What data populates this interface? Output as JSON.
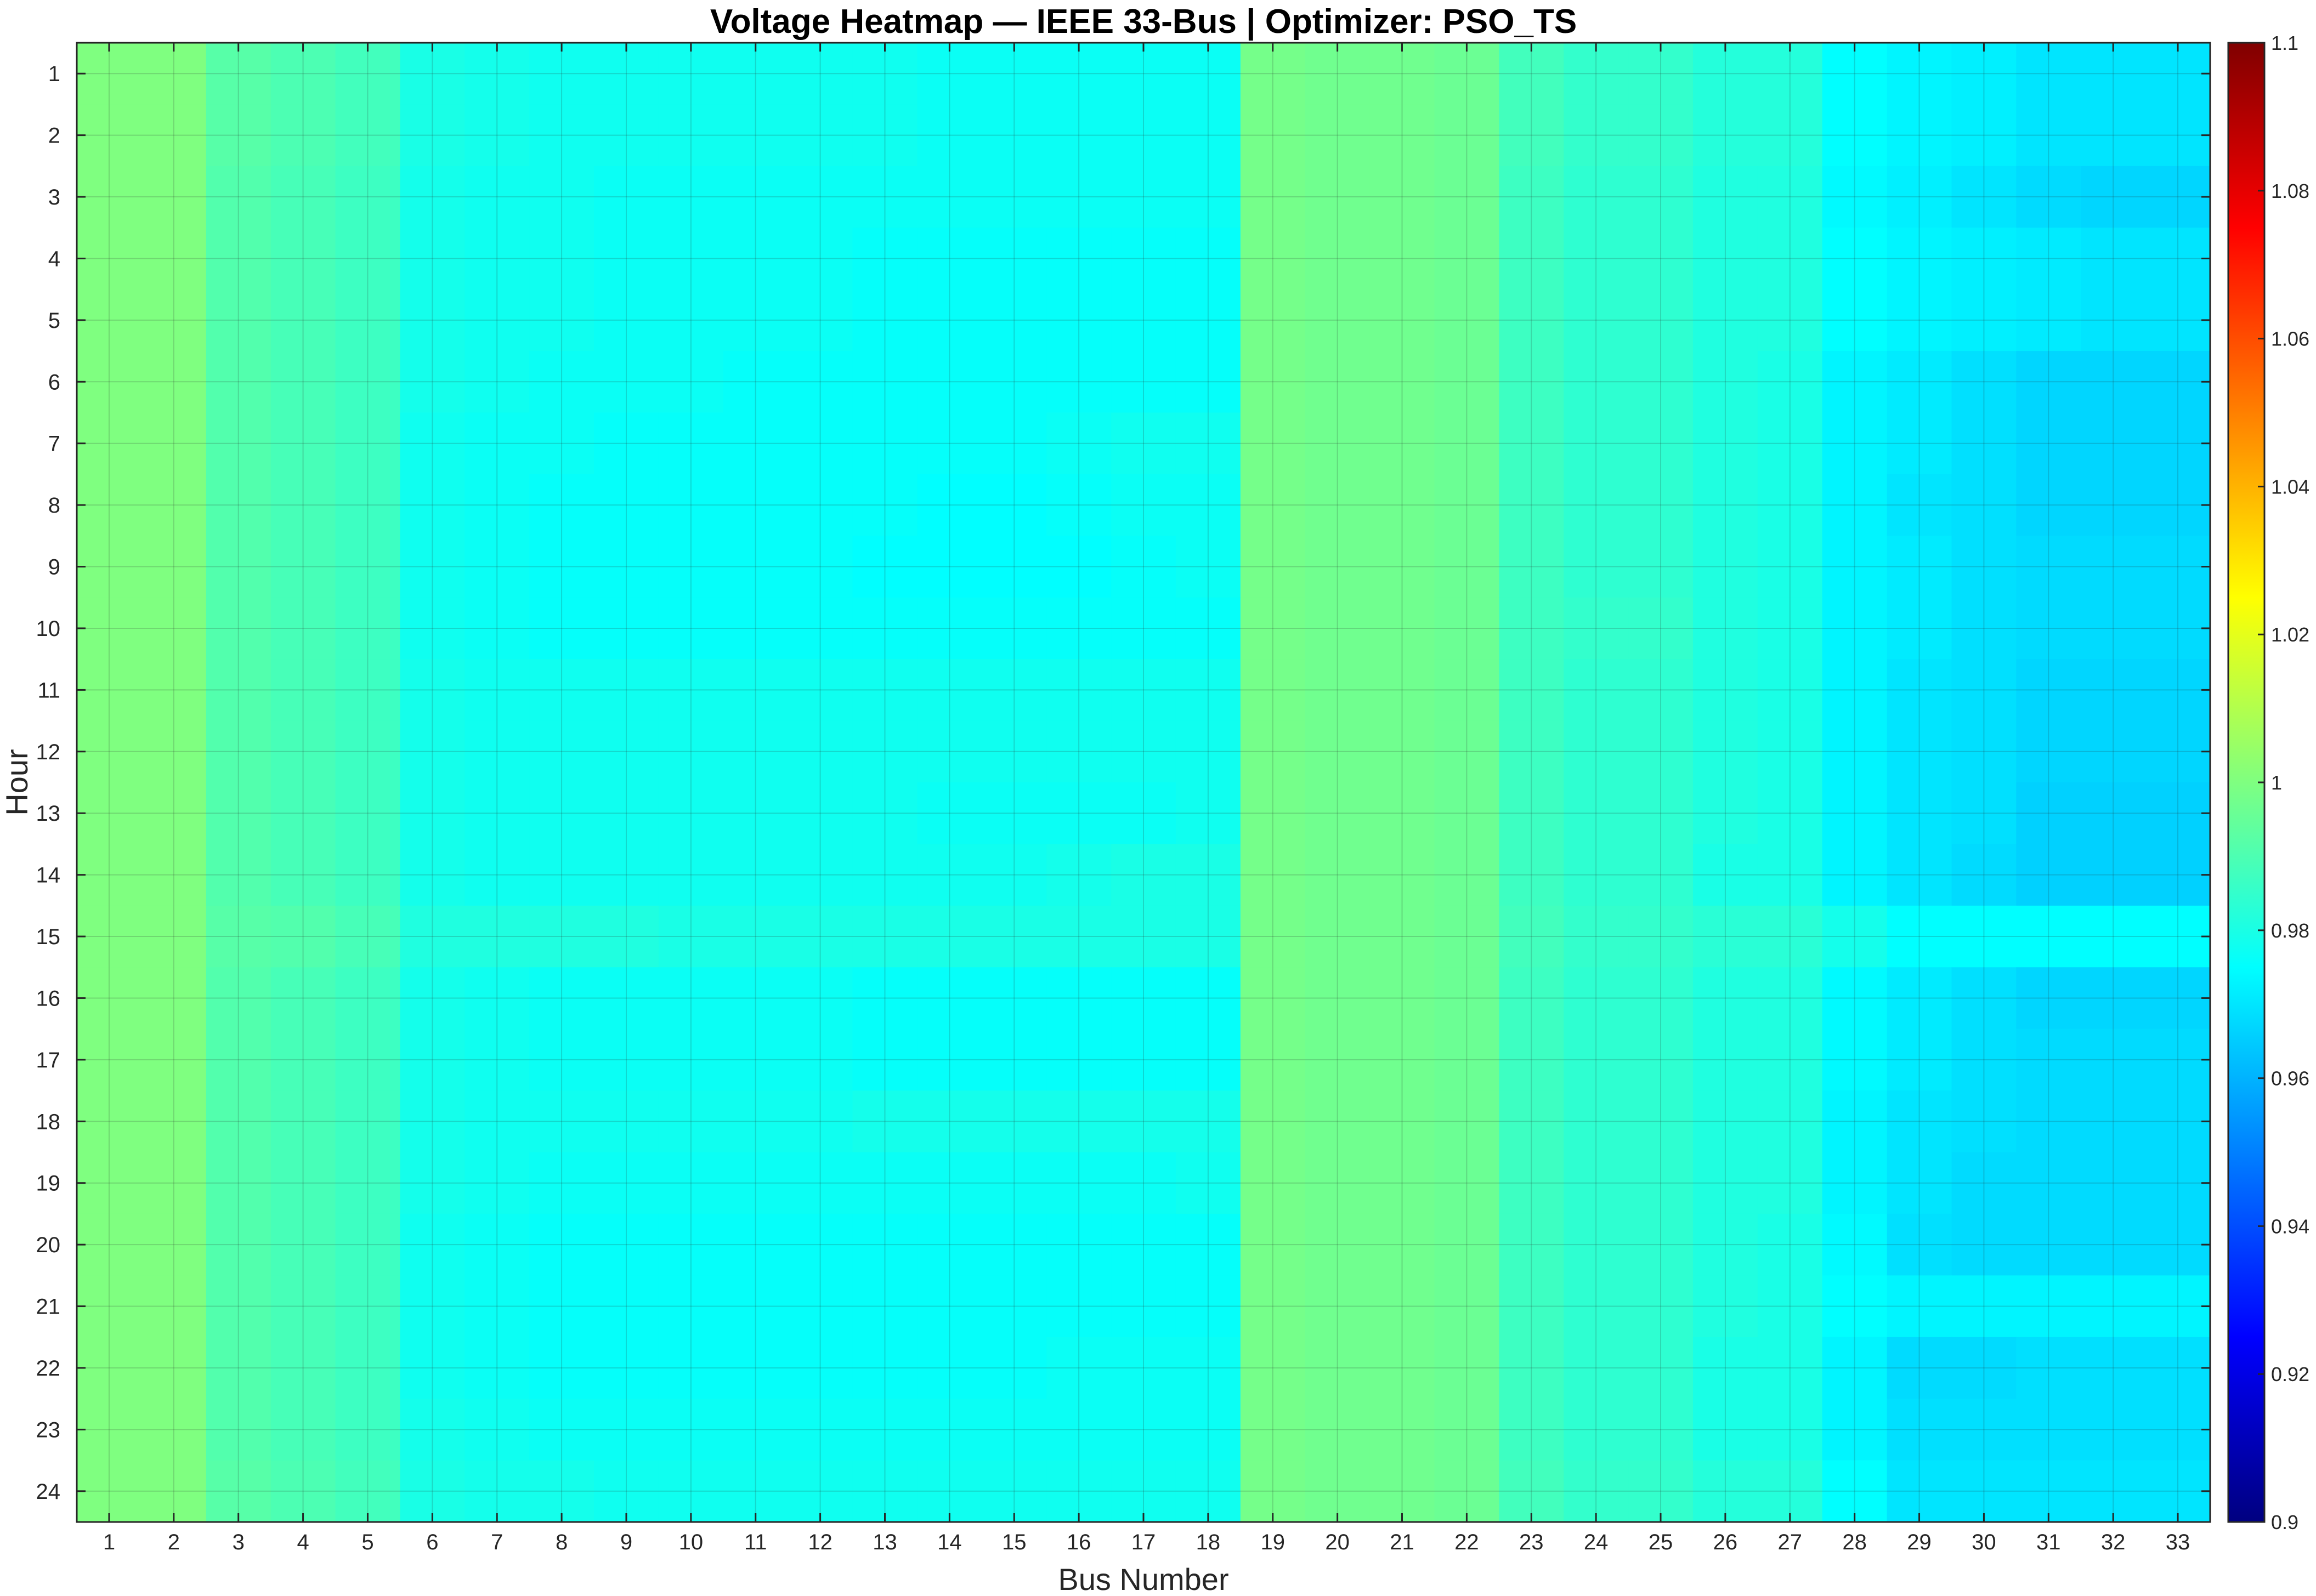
{
  "chart_data": {
    "type": "heatmap",
    "title": "Voltage Heatmap — IEEE 33-Bus | Optimizer: PSO_TS",
    "xlabel": "Bus Number",
    "ylabel": "Hour",
    "x": [
      1,
      2,
      3,
      4,
      5,
      6,
      7,
      8,
      9,
      10,
      11,
      12,
      13,
      14,
      15,
      16,
      17,
      18,
      19,
      20,
      21,
      22,
      23,
      24,
      25,
      26,
      27,
      28,
      29,
      30,
      31,
      32,
      33
    ],
    "y": [
      1,
      2,
      3,
      4,
      5,
      6,
      7,
      8,
      9,
      10,
      11,
      12,
      13,
      14,
      15,
      16,
      17,
      18,
      19,
      20,
      21,
      22,
      23,
      24
    ],
    "colormap": "jet",
    "clim": [
      0.9,
      1.1
    ],
    "colorbar_ticks": [
      0.9,
      0.92,
      0.94,
      0.96,
      0.98,
      1,
      1.02,
      1.04,
      1.06,
      1.08,
      1.1
    ],
    "colorbar_location": "right",
    "grid": true,
    "hourly_values": [
      {
        "hour": 1,
        "values": [
          1.0,
          1.0,
          0.992,
          0.99,
          0.988,
          0.98,
          0.979,
          0.978,
          0.978,
          0.978,
          0.978,
          0.978,
          0.978,
          0.977,
          0.977,
          0.977,
          0.977,
          0.977,
          0.998,
          0.997,
          0.997,
          0.996,
          0.988,
          0.985,
          0.985,
          0.982,
          0.982,
          0.975,
          0.973,
          0.972,
          0.97,
          0.97,
          0.97
        ]
      },
      {
        "hour": 2,
        "values": [
          1.0,
          1.0,
          0.992,
          0.99,
          0.988,
          0.98,
          0.979,
          0.978,
          0.978,
          0.978,
          0.978,
          0.978,
          0.978,
          0.977,
          0.977,
          0.977,
          0.977,
          0.977,
          0.998,
          0.997,
          0.997,
          0.996,
          0.988,
          0.985,
          0.985,
          0.982,
          0.982,
          0.975,
          0.973,
          0.972,
          0.97,
          0.97,
          0.97
        ]
      },
      {
        "hour": 3,
        "values": [
          1.0,
          1.0,
          0.991,
          0.989,
          0.987,
          0.979,
          0.978,
          0.978,
          0.977,
          0.977,
          0.977,
          0.977,
          0.977,
          0.977,
          0.977,
          0.977,
          0.977,
          0.977,
          0.998,
          0.997,
          0.997,
          0.996,
          0.987,
          0.984,
          0.984,
          0.981,
          0.981,
          0.974,
          0.972,
          0.97,
          0.968,
          0.967,
          0.967
        ]
      },
      {
        "hour": 4,
        "values": [
          1.0,
          1.0,
          0.991,
          0.989,
          0.987,
          0.979,
          0.978,
          0.978,
          0.977,
          0.977,
          0.977,
          0.977,
          0.976,
          0.976,
          0.976,
          0.976,
          0.976,
          0.976,
          0.998,
          0.997,
          0.997,
          0.996,
          0.987,
          0.984,
          0.984,
          0.981,
          0.981,
          0.975,
          0.973,
          0.972,
          0.971,
          0.97,
          0.97
        ]
      },
      {
        "hour": 5,
        "values": [
          1.0,
          1.0,
          0.991,
          0.989,
          0.987,
          0.979,
          0.978,
          0.978,
          0.977,
          0.977,
          0.977,
          0.977,
          0.976,
          0.976,
          0.976,
          0.976,
          0.976,
          0.976,
          0.998,
          0.997,
          0.997,
          0.996,
          0.987,
          0.984,
          0.984,
          0.981,
          0.981,
          0.975,
          0.973,
          0.972,
          0.971,
          0.97,
          0.97
        ]
      },
      {
        "hour": 6,
        "values": [
          1.0,
          1.0,
          0.991,
          0.989,
          0.987,
          0.979,
          0.978,
          0.977,
          0.977,
          0.977,
          0.976,
          0.976,
          0.976,
          0.976,
          0.976,
          0.976,
          0.976,
          0.976,
          0.998,
          0.997,
          0.997,
          0.996,
          0.987,
          0.984,
          0.984,
          0.981,
          0.98,
          0.973,
          0.971,
          0.969,
          0.967,
          0.967,
          0.967
        ]
      },
      {
        "hour": 7,
        "values": [
          1.0,
          1.0,
          0.991,
          0.989,
          0.987,
          0.978,
          0.977,
          0.977,
          0.976,
          0.976,
          0.976,
          0.976,
          0.976,
          0.976,
          0.976,
          0.977,
          0.978,
          0.978,
          0.998,
          0.997,
          0.997,
          0.996,
          0.987,
          0.984,
          0.984,
          0.981,
          0.98,
          0.973,
          0.971,
          0.969,
          0.967,
          0.967,
          0.967
        ]
      },
      {
        "hour": 8,
        "values": [
          1.0,
          1.0,
          0.991,
          0.989,
          0.987,
          0.978,
          0.977,
          0.976,
          0.976,
          0.976,
          0.976,
          0.976,
          0.976,
          0.975,
          0.975,
          0.976,
          0.977,
          0.977,
          0.998,
          0.997,
          0.997,
          0.996,
          0.987,
          0.984,
          0.984,
          0.981,
          0.98,
          0.973,
          0.97,
          0.969,
          0.967,
          0.967,
          0.967
        ]
      },
      {
        "hour": 9,
        "values": [
          1.0,
          1.0,
          0.991,
          0.989,
          0.987,
          0.978,
          0.977,
          0.976,
          0.976,
          0.976,
          0.976,
          0.976,
          0.975,
          0.975,
          0.975,
          0.975,
          0.976,
          0.977,
          0.998,
          0.997,
          0.997,
          0.996,
          0.987,
          0.984,
          0.984,
          0.981,
          0.98,
          0.973,
          0.971,
          0.969,
          0.968,
          0.968,
          0.968
        ]
      },
      {
        "hour": 10,
        "values": [
          1.0,
          1.0,
          0.991,
          0.989,
          0.987,
          0.978,
          0.977,
          0.976,
          0.976,
          0.976,
          0.976,
          0.976,
          0.976,
          0.976,
          0.976,
          0.976,
          0.976,
          0.976,
          0.998,
          0.997,
          0.997,
          0.996,
          0.987,
          0.985,
          0.985,
          0.981,
          0.98,
          0.973,
          0.971,
          0.969,
          0.968,
          0.968,
          0.968
        ]
      },
      {
        "hour": 11,
        "values": [
          1.0,
          1.0,
          0.991,
          0.989,
          0.987,
          0.979,
          0.978,
          0.978,
          0.978,
          0.978,
          0.978,
          0.978,
          0.978,
          0.978,
          0.978,
          0.978,
          0.978,
          0.978,
          0.998,
          0.997,
          0.997,
          0.996,
          0.987,
          0.984,
          0.984,
          0.981,
          0.98,
          0.973,
          0.97,
          0.969,
          0.967,
          0.967,
          0.967
        ]
      },
      {
        "hour": 12,
        "values": [
          1.0,
          1.0,
          0.991,
          0.989,
          0.987,
          0.979,
          0.978,
          0.978,
          0.978,
          0.978,
          0.978,
          0.978,
          0.978,
          0.978,
          0.978,
          0.978,
          0.978,
          0.978,
          0.998,
          0.997,
          0.997,
          0.996,
          0.987,
          0.984,
          0.984,
          0.981,
          0.98,
          0.973,
          0.97,
          0.969,
          0.967,
          0.967,
          0.967
        ]
      },
      {
        "hour": 13,
        "values": [
          1.0,
          1.0,
          0.991,
          0.989,
          0.987,
          0.979,
          0.978,
          0.978,
          0.978,
          0.978,
          0.978,
          0.978,
          0.978,
          0.977,
          0.977,
          0.977,
          0.977,
          0.978,
          0.998,
          0.997,
          0.997,
          0.996,
          0.987,
          0.984,
          0.984,
          0.981,
          0.98,
          0.973,
          0.97,
          0.969,
          0.966,
          0.966,
          0.966
        ]
      },
      {
        "hour": 14,
        "values": [
          1.0,
          1.0,
          0.991,
          0.989,
          0.987,
          0.979,
          0.978,
          0.978,
          0.978,
          0.978,
          0.978,
          0.978,
          0.978,
          0.978,
          0.978,
          0.979,
          0.98,
          0.98,
          0.998,
          0.997,
          0.997,
          0.996,
          0.987,
          0.984,
          0.984,
          0.98,
          0.98,
          0.973,
          0.97,
          0.968,
          0.966,
          0.966,
          0.966
        ]
      },
      {
        "hour": 15,
        "values": [
          1.0,
          1.0,
          0.992,
          0.991,
          0.989,
          0.981,
          0.981,
          0.981,
          0.981,
          0.98,
          0.98,
          0.98,
          0.98,
          0.98,
          0.98,
          0.98,
          0.98,
          0.98,
          0.998,
          0.997,
          0.997,
          0.996,
          0.988,
          0.985,
          0.985,
          0.983,
          0.983,
          0.979,
          0.975,
          0.975,
          0.975,
          0.975,
          0.975
        ]
      },
      {
        "hour": 16,
        "values": [
          1.0,
          1.0,
          0.991,
          0.989,
          0.987,
          0.979,
          0.978,
          0.977,
          0.977,
          0.977,
          0.977,
          0.977,
          0.976,
          0.976,
          0.976,
          0.976,
          0.976,
          0.976,
          0.998,
          0.997,
          0.997,
          0.996,
          0.987,
          0.984,
          0.984,
          0.981,
          0.981,
          0.974,
          0.971,
          0.969,
          0.967,
          0.967,
          0.967
        ]
      },
      {
        "hour": 17,
        "values": [
          1.0,
          1.0,
          0.991,
          0.989,
          0.987,
          0.979,
          0.978,
          0.977,
          0.977,
          0.977,
          0.977,
          0.977,
          0.976,
          0.976,
          0.976,
          0.976,
          0.976,
          0.976,
          0.998,
          0.997,
          0.997,
          0.996,
          0.987,
          0.984,
          0.984,
          0.981,
          0.981,
          0.974,
          0.971,
          0.969,
          0.968,
          0.968,
          0.968
        ]
      },
      {
        "hour": 18,
        "values": [
          1.0,
          1.0,
          0.991,
          0.989,
          0.987,
          0.979,
          0.978,
          0.978,
          0.978,
          0.978,
          0.978,
          0.978,
          0.979,
          0.979,
          0.979,
          0.979,
          0.979,
          0.979,
          0.998,
          0.997,
          0.997,
          0.996,
          0.987,
          0.984,
          0.984,
          0.981,
          0.981,
          0.973,
          0.97,
          0.969,
          0.968,
          0.968,
          0.968
        ]
      },
      {
        "hour": 19,
        "values": [
          1.0,
          1.0,
          0.991,
          0.989,
          0.987,
          0.979,
          0.978,
          0.977,
          0.977,
          0.977,
          0.977,
          0.977,
          0.977,
          0.977,
          0.977,
          0.977,
          0.977,
          0.978,
          0.998,
          0.997,
          0.997,
          0.996,
          0.987,
          0.984,
          0.984,
          0.981,
          0.981,
          0.973,
          0.97,
          0.968,
          0.968,
          0.968,
          0.968
        ]
      },
      {
        "hour": 20,
        "values": [
          1.0,
          1.0,
          0.991,
          0.989,
          0.987,
          0.978,
          0.977,
          0.976,
          0.976,
          0.976,
          0.976,
          0.976,
          0.976,
          0.976,
          0.976,
          0.976,
          0.976,
          0.976,
          0.998,
          0.997,
          0.997,
          0.996,
          0.987,
          0.984,
          0.984,
          0.981,
          0.98,
          0.974,
          0.969,
          0.968,
          0.968,
          0.968,
          0.968
        ]
      },
      {
        "hour": 21,
        "values": [
          1.0,
          1.0,
          0.991,
          0.989,
          0.987,
          0.978,
          0.977,
          0.976,
          0.976,
          0.976,
          0.976,
          0.976,
          0.976,
          0.976,
          0.976,
          0.976,
          0.976,
          0.976,
          0.998,
          0.997,
          0.997,
          0.996,
          0.987,
          0.984,
          0.984,
          0.981,
          0.98,
          0.975,
          0.973,
          0.973,
          0.973,
          0.973,
          0.973
        ]
      },
      {
        "hour": 22,
        "values": [
          1.0,
          1.0,
          0.991,
          0.989,
          0.987,
          0.978,
          0.977,
          0.976,
          0.976,
          0.976,
          0.976,
          0.976,
          0.976,
          0.976,
          0.976,
          0.977,
          0.977,
          0.977,
          0.998,
          0.997,
          0.997,
          0.996,
          0.987,
          0.984,
          0.984,
          0.98,
          0.98,
          0.973,
          0.968,
          0.968,
          0.969,
          0.969,
          0.969
        ]
      },
      {
        "hour": 23,
        "values": [
          1.0,
          1.0,
          0.991,
          0.989,
          0.987,
          0.979,
          0.978,
          0.977,
          0.977,
          0.977,
          0.977,
          0.977,
          0.977,
          0.977,
          0.977,
          0.977,
          0.977,
          0.977,
          0.998,
          0.997,
          0.997,
          0.996,
          0.987,
          0.984,
          0.984,
          0.98,
          0.98,
          0.973,
          0.969,
          0.969,
          0.969,
          0.969,
          0.969
        ]
      },
      {
        "hour": 24,
        "values": [
          1.0,
          1.0,
          0.992,
          0.99,
          0.988,
          0.98,
          0.979,
          0.979,
          0.978,
          0.978,
          0.978,
          0.978,
          0.978,
          0.978,
          0.978,
          0.978,
          0.978,
          0.978,
          0.998,
          0.997,
          0.997,
          0.996,
          0.988,
          0.985,
          0.985,
          0.982,
          0.982,
          0.975,
          0.97,
          0.97,
          0.97,
          0.97,
          0.97
        ]
      }
    ]
  }
}
